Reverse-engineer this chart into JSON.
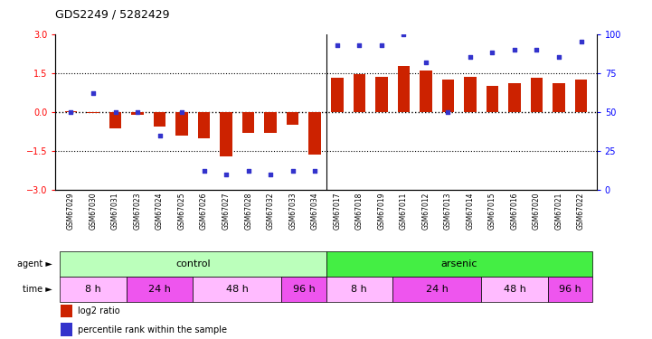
{
  "title": "GDS2249 / 5282429",
  "samples": [
    "GSM67029",
    "GSM67030",
    "GSM67031",
    "GSM67023",
    "GSM67024",
    "GSM67025",
    "GSM67026",
    "GSM67027",
    "GSM67028",
    "GSM67032",
    "GSM67033",
    "GSM67034",
    "GSM67017",
    "GSM67018",
    "GSM67019",
    "GSM67011",
    "GSM67012",
    "GSM67013",
    "GSM67014",
    "GSM67015",
    "GSM67016",
    "GSM67020",
    "GSM67021",
    "GSM67022"
  ],
  "log2_ratio": [
    0.02,
    -0.05,
    -0.65,
    -0.12,
    -0.55,
    -0.9,
    -1.0,
    -1.7,
    -0.8,
    -0.8,
    -0.5,
    -1.65,
    1.3,
    1.45,
    1.35,
    1.75,
    1.6,
    1.25,
    1.35,
    1.0,
    1.1,
    1.3,
    1.1,
    1.25
  ],
  "percentile_rank": [
    50,
    62,
    50,
    50,
    35,
    50,
    12,
    10,
    12,
    10,
    12,
    12,
    93,
    93,
    93,
    100,
    82,
    50,
    85,
    88,
    90,
    90,
    85,
    95
  ],
  "bar_color": "#cc2200",
  "dot_color": "#3333cc",
  "ylim_left": [
    -3,
    3
  ],
  "ylim_right": [
    0,
    100
  ],
  "yticks_left": [
    -3,
    -1.5,
    0,
    1.5,
    3
  ],
  "yticks_right": [
    0,
    25,
    50,
    75,
    100
  ],
  "hlines": [
    -1.5,
    0,
    1.5
  ],
  "agent_groups": [
    {
      "label": "control",
      "start": 0,
      "end": 11,
      "color": "#bbffbb"
    },
    {
      "label": "arsenic",
      "start": 12,
      "end": 23,
      "color": "#44ee44"
    }
  ],
  "time_groups": [
    {
      "label": "8 h",
      "start": 0,
      "end": 2,
      "color": "#ffbbff"
    },
    {
      "label": "24 h",
      "start": 3,
      "end": 5,
      "color": "#ee55ee"
    },
    {
      "label": "48 h",
      "start": 6,
      "end": 9,
      "color": "#ffbbff"
    },
    {
      "label": "96 h",
      "start": 10,
      "end": 11,
      "color": "#ee55ee"
    },
    {
      "label": "8 h",
      "start": 12,
      "end": 14,
      "color": "#ffbbff"
    },
    {
      "label": "24 h",
      "start": 15,
      "end": 18,
      "color": "#ee55ee"
    },
    {
      "label": "48 h",
      "start": 19,
      "end": 21,
      "color": "#ffbbff"
    },
    {
      "label": "96 h",
      "start": 22,
      "end": 23,
      "color": "#ee55ee"
    }
  ],
  "legend_items": [
    {
      "label": "log2 ratio",
      "color": "#cc2200"
    },
    {
      "label": "percentile rank within the sample",
      "color": "#3333cc"
    }
  ]
}
